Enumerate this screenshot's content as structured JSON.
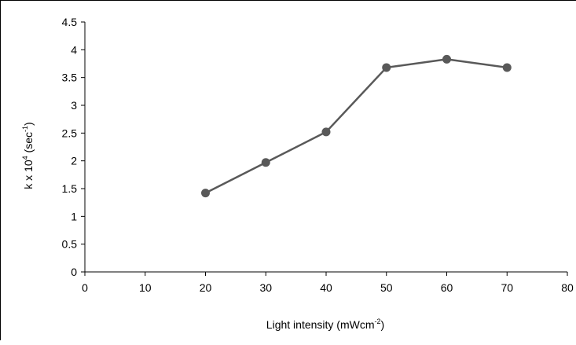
{
  "chart_data": {
    "type": "line",
    "title": "",
    "xlabel": {
      "base": "Light intensity (mWcm",
      "sup": "-2",
      "tail": ")"
    },
    "ylabel": {
      "base": "k x 10",
      "sup1": "4",
      "mid": " (sec",
      "sup2": "-1",
      "tail": ")"
    },
    "xlim": [
      0,
      80
    ],
    "ylim": [
      0,
      4.5
    ],
    "x_ticks": [
      0,
      10,
      20,
      30,
      40,
      50,
      60,
      70,
      80
    ],
    "y_ticks": [
      0,
      0.5,
      1,
      1.5,
      2,
      2.5,
      3,
      3.5,
      4,
      4.5
    ],
    "x_tick_labels": [
      "0",
      "10",
      "20",
      "30",
      "40",
      "50",
      "60",
      "70",
      "80"
    ],
    "y_tick_labels": [
      "0",
      "0.5",
      "1",
      "1.5",
      "2",
      "2.5",
      "3",
      "3.5",
      "4",
      "4.5"
    ],
    "grid": false,
    "legend": "none",
    "series": [
      {
        "x": [
          20,
          30,
          40,
          50,
          60,
          70
        ],
        "y": [
          1.42,
          1.97,
          2.52,
          3.68,
          3.83,
          3.68
        ],
        "color": "#595959"
      }
    ]
  }
}
